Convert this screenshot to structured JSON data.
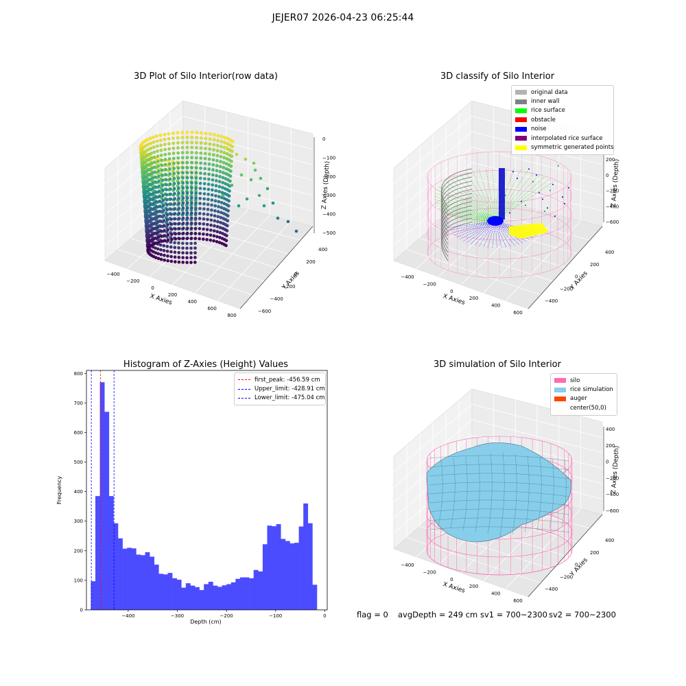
{
  "figure": {
    "suptitle": "JEJER07 2026-04-23 06:25:44",
    "status": {
      "flag": "flag = 0",
      "avg_depth": "avgDepth = 249 cm",
      "sv1": "sv1 = 700~2300",
      "sv2": "sv2 = 700~2300"
    }
  },
  "chart_data": [
    {
      "type": "scatter",
      "title": "3D Plot of Silo Interior(row data)",
      "xlabel": "X Axies",
      "ylabel": "Y Axies",
      "zlabel": "Z Axies (Depth)",
      "xticks": [
        "−400",
        "−200",
        "0",
        "200",
        "400",
        "600",
        "800"
      ],
      "yticks": [
        "−600",
        "−400",
        "−200",
        "0",
        "200",
        "400"
      ],
      "zticks": [
        "0",
        "−100",
        "−200",
        "−300",
        "−400",
        "−500"
      ],
      "colormap": "viridis",
      "xlim": [
        -500,
        800
      ],
      "ylim": [
        -650,
        450
      ],
      "zlim": [
        -520,
        10
      ]
    },
    {
      "type": "scatter",
      "title": "3D classify of Silo Interior",
      "xlabel": "X Axies",
      "ylabel": "Y Axies",
      "zlabel": "Z Axies (Depth)",
      "xticks": [
        "−400",
        "−200",
        "0",
        "200",
        "400",
        "600"
      ],
      "yticks": [
        "−400",
        "−200",
        "0",
        "200",
        "400"
      ],
      "zticks": [
        "200",
        "0",
        "−200",
        "−400",
        "−600"
      ],
      "legend": [
        {
          "label": "original data",
          "color": "#b3b3b3"
        },
        {
          "label": "inner wall",
          "color": "#808080"
        },
        {
          "label": "rice surface",
          "color": "#00ff00"
        },
        {
          "label": "obstacle",
          "color": "#ff0000"
        },
        {
          "label": "noise",
          "color": "#0000ff"
        },
        {
          "label": "interpolated rice surface",
          "color": "#800080"
        },
        {
          "label": "symmetric generated points",
          "color": "#ffff00"
        }
      ],
      "silo_color": "#ff69b4"
    },
    {
      "type": "bar",
      "title": "Histogram of Z-Axies (Height) Values",
      "xlabel": "Depth (cm)",
      "ylabel": "Frequency",
      "xlim": [
        -485,
        5
      ],
      "ylim": [
        0,
        810
      ],
      "xticks": [
        -400,
        -300,
        -200,
        -100,
        0
      ],
      "yticks": [
        0,
        100,
        200,
        300,
        400,
        500,
        600,
        700,
        800
      ],
      "bin_start": -476,
      "bin_width": 9.2,
      "values": [
        97,
        385,
        770,
        670,
        385,
        293,
        242,
        207,
        210,
        208,
        187,
        185,
        195,
        180,
        153,
        122,
        120,
        125,
        107,
        102,
        75,
        90,
        82,
        77,
        67,
        87,
        95,
        82,
        78,
        83,
        87,
        93,
        105,
        110,
        110,
        107,
        135,
        130,
        222,
        285,
        283,
        290,
        240,
        233,
        225,
        227,
        282,
        360,
        293,
        85
      ],
      "bar_color": "#4c4cff",
      "vlines": [
        {
          "label": "first_peak: -456.59 cm",
          "x": -456.59,
          "color": "#ff0000"
        },
        {
          "label": "Upper_limit: -428.91 cm",
          "x": -428.91,
          "color": "#0000ff"
        },
        {
          "label": "Lower_limit: -475.04 cm",
          "x": -475.04,
          "color": "#0000ff"
        }
      ]
    },
    {
      "type": "area",
      "title": "3D simulation of Silo Interior",
      "xlabel": "X Axies",
      "ylabel": "Y Axies",
      "zlabel": "Z Axies (Depth)",
      "xticks": [
        "−400",
        "−200",
        "0",
        "200",
        "400",
        "600"
      ],
      "yticks": [
        "−400",
        "−200",
        "0",
        "200",
        "400"
      ],
      "zticks": [
        "400",
        "200",
        "0",
        "−200",
        "−400",
        "−600"
      ],
      "legend": [
        {
          "label": "silo",
          "color": "#ff69b4"
        },
        {
          "label": "rice simulation",
          "color": "#87ceeb"
        },
        {
          "label": "auger",
          "color": "#ff4500"
        },
        {
          "label": "center(50,0)",
          "color": "transparent"
        }
      ]
    }
  ]
}
